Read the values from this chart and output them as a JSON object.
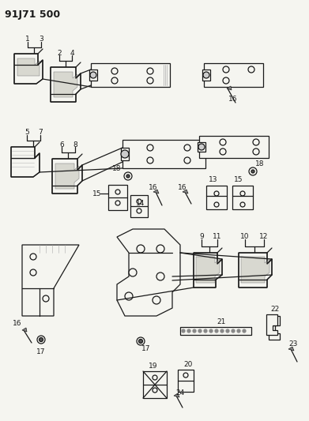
{
  "title": "91J71 500",
  "bg_color": "#f5f5f0",
  "line_color": "#1a1a1a",
  "lw": 0.9
}
